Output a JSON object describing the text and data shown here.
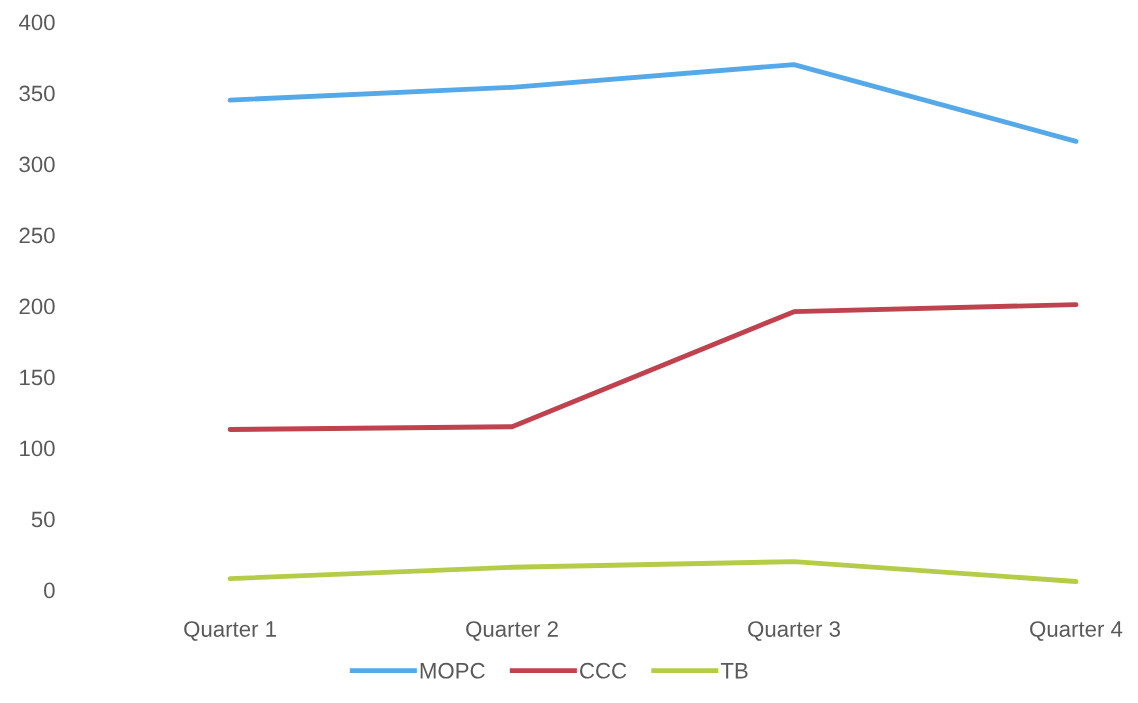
{
  "chart_data": {
    "type": "line",
    "categories": [
      "Quarter 1",
      "Quarter 2",
      "Quarter 3",
      "Quarter 4"
    ],
    "series": [
      {
        "name": "MOPC",
        "color": "#56a9e8",
        "values": [
          345,
          354,
          370,
          316
        ]
      },
      {
        "name": "CCC",
        "color": "#c0424e",
        "values": [
          113,
          115,
          196,
          201
        ]
      },
      {
        "name": "TB",
        "color": "#b5cc48",
        "values": [
          8,
          16,
          20,
          6
        ]
      }
    ],
    "ylim": [
      0,
      400
    ],
    "yticks": [
      0,
      50,
      100,
      150,
      200,
      250,
      300,
      350,
      400
    ],
    "grid": false,
    "legend": "bottom",
    "marker": "none",
    "line_style": "solid"
  }
}
